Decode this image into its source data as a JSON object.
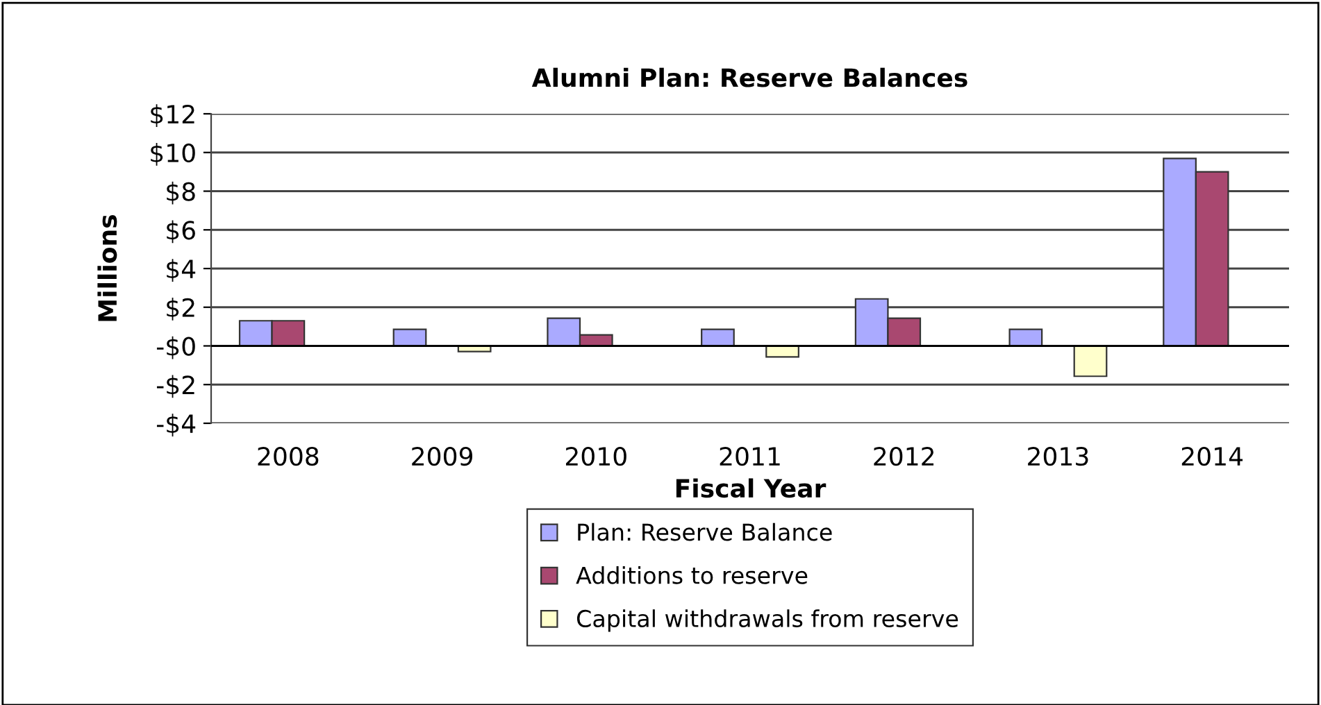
{
  "chart_data": {
    "type": "bar",
    "title": "Alumni Plan: Reserve Balances",
    "xlabel": "Fiscal Year",
    "ylabel": "Millions",
    "categories": [
      "2008",
      "2009",
      "2010",
      "2011",
      "2012",
      "2013",
      "2014"
    ],
    "series": [
      {
        "name": "Plan: Reserve Balance",
        "color": "#aaaaff",
        "values": [
          1.3,
          0.86,
          1.43,
          0.86,
          2.43,
          0.86,
          9.69
        ]
      },
      {
        "name": "Additions to reserve",
        "color": "#a94870",
        "values": [
          1.3,
          null,
          0.57,
          null,
          1.43,
          null,
          9.0
        ]
      },
      {
        "name": "Capital withdrawals from reserve",
        "color": "#ffffcc",
        "values": [
          null,
          -0.29,
          null,
          -0.57,
          null,
          -1.57,
          null
        ]
      }
    ],
    "ylim": [
      -4,
      12
    ],
    "yticks": [
      {
        "value": -4,
        "label": "-$4"
      },
      {
        "value": -2,
        "label": "-$2"
      },
      {
        "value": 0,
        "label": "-$0"
      },
      {
        "value": 2,
        "label": "$2"
      },
      {
        "value": 4,
        "label": "$4"
      },
      {
        "value": 6,
        "label": "$6"
      },
      {
        "value": 8,
        "label": "$8"
      },
      {
        "value": 10,
        "label": "$10"
      },
      {
        "value": 12,
        "label": "$12"
      }
    ],
    "grid": "y",
    "legend": "bottom"
  }
}
